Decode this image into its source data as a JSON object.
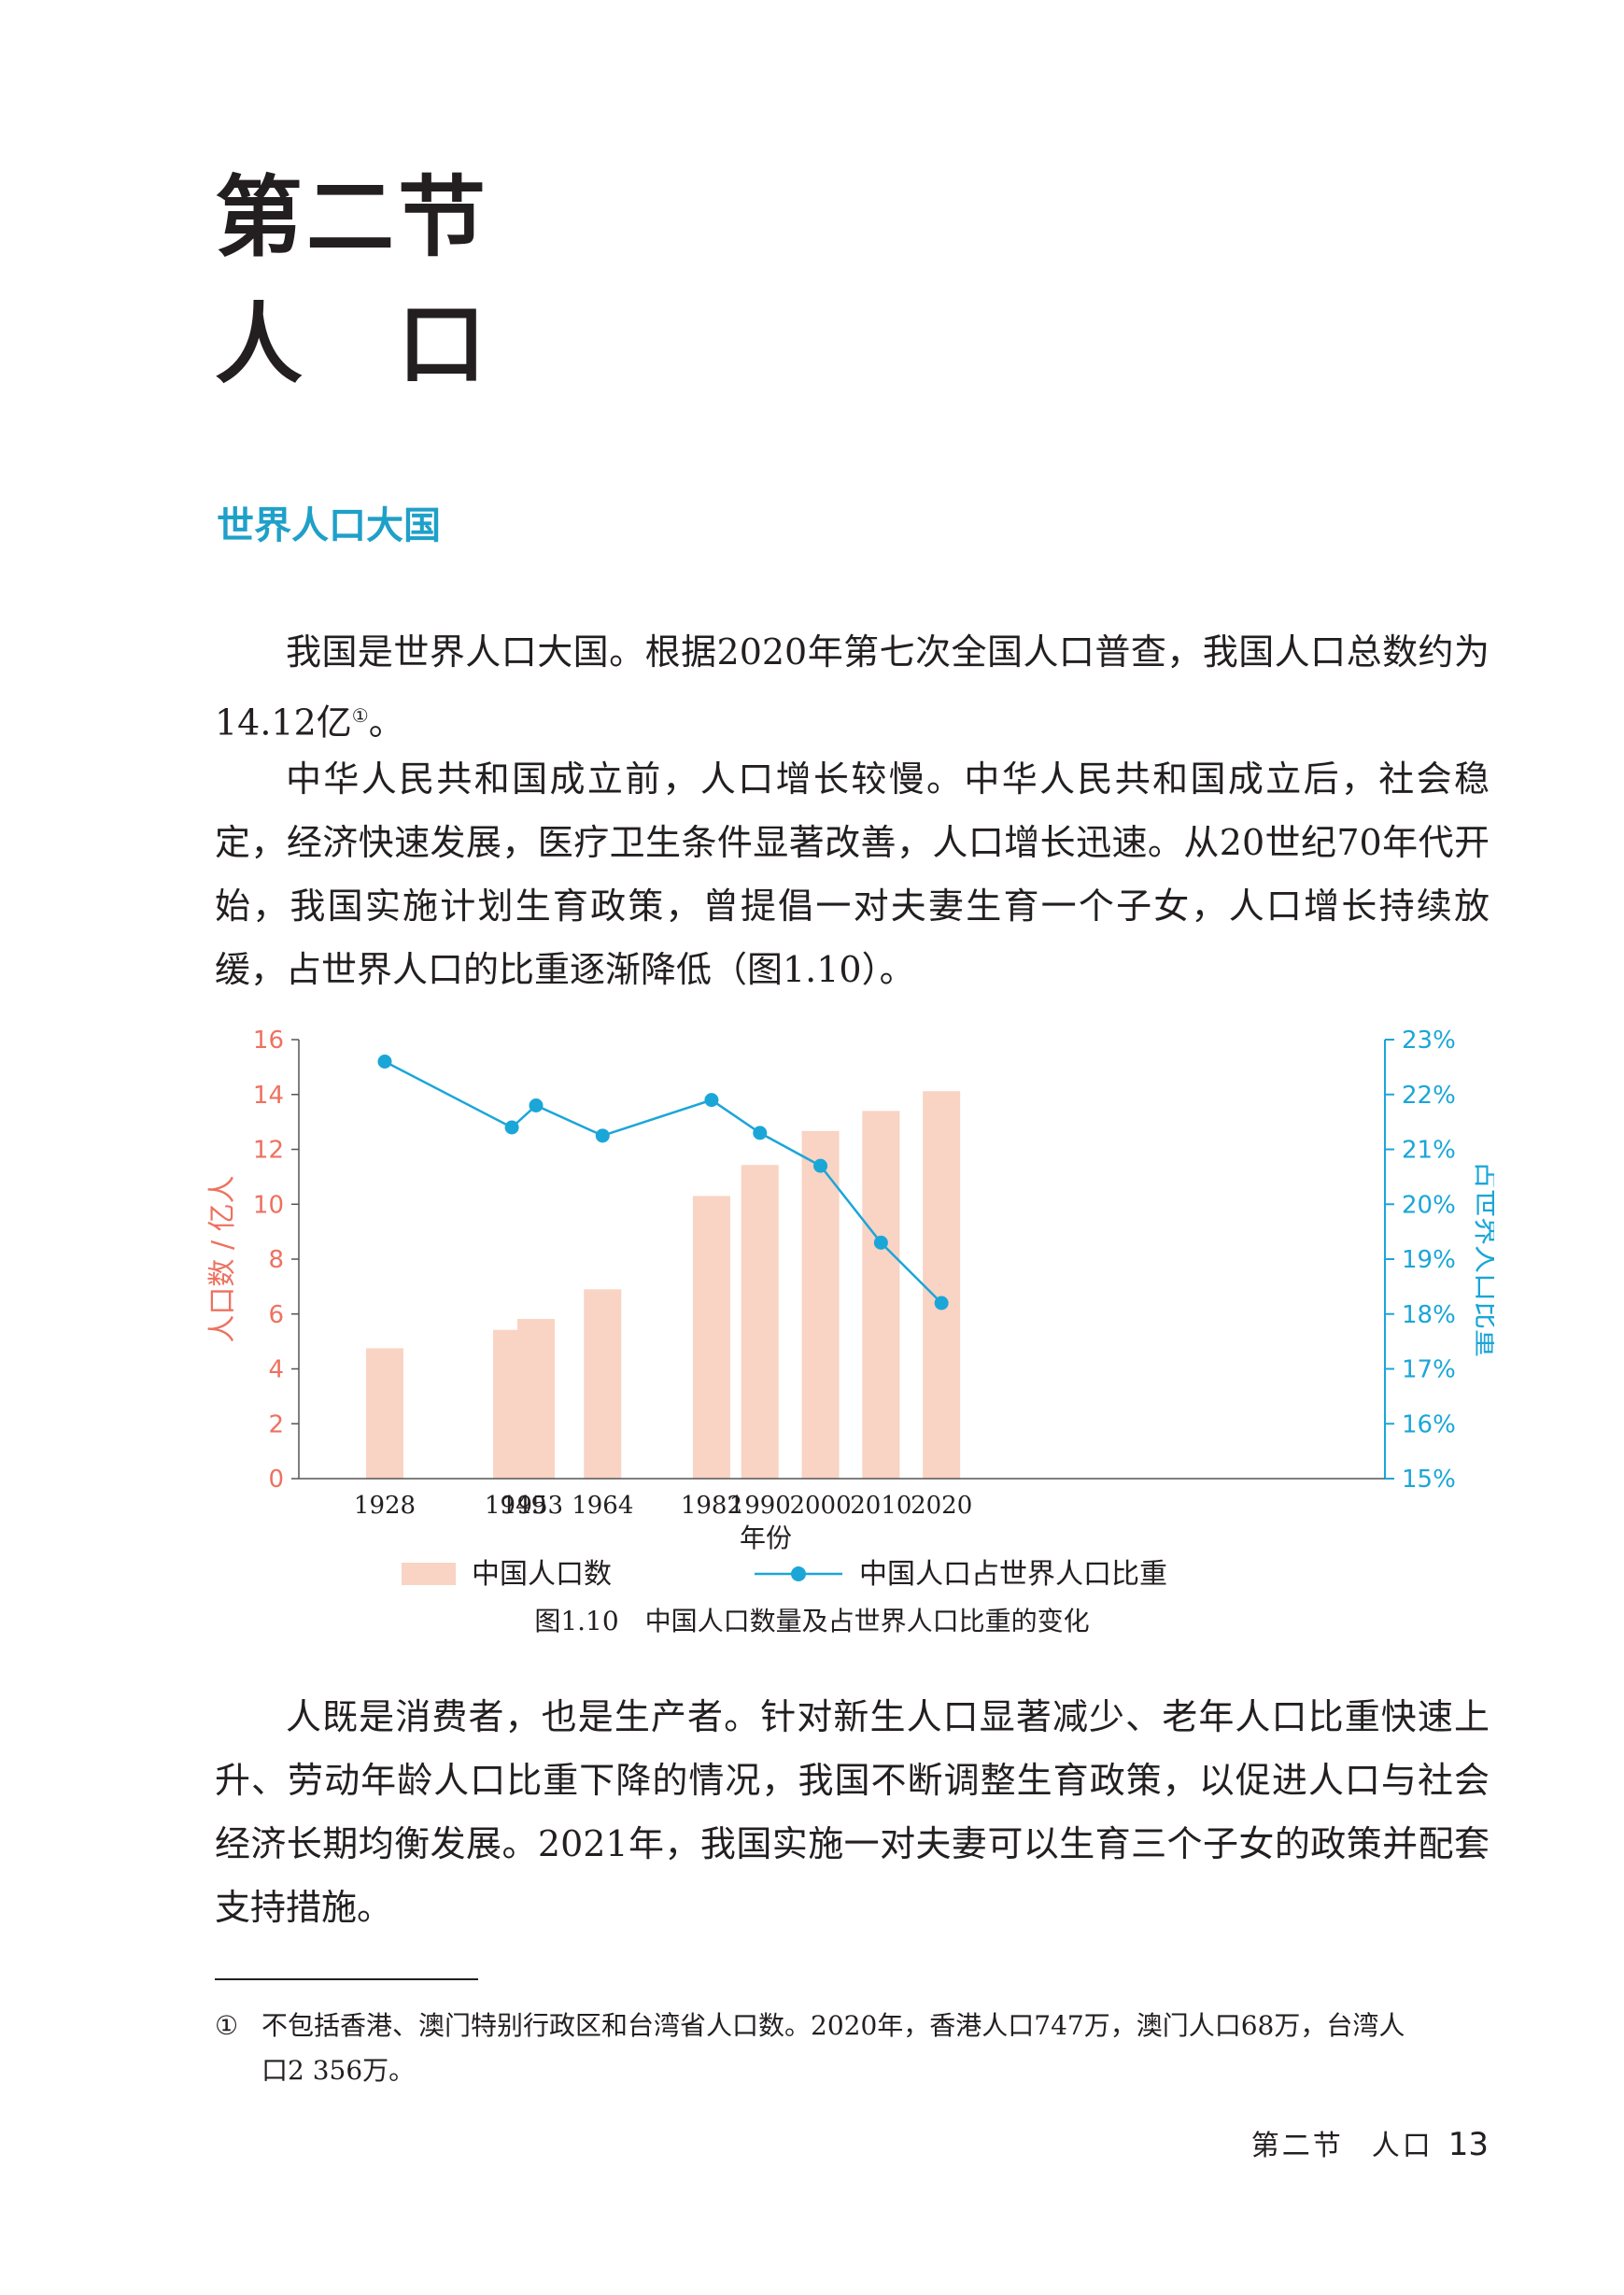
{
  "section": {
    "number": "第二节",
    "title": "人　口"
  },
  "subheading": "世界人口大国",
  "paragraphs": [
    {
      "text": "我国是世界人口大国。根据2020年第七次全国人口普查，我国人口总数约为14.12亿",
      "footnote_ref": "①",
      "tail": "。"
    },
    {
      "text": "中华人民共和国成立前，人口增长较慢。中华人民共和国成立后，社会稳定，经济快速发展，医疗卫生条件显著改善，人口增长迅速。从20世纪70年代开始，我国实施计划生育政策，曾提倡一对夫妻生育一个子女，人口增长持续放缓，占世界人口的比重逐渐降低（图1.10）。"
    },
    {
      "text": "人既是消费者，也是生产者。针对新生人口显著减少、老年人口比重快速上升、劳动年龄人口比重下降的情况，我国不断调整生育政策，以促进人口与社会经济长期均衡发展。2021年，我国实施一对夫妻可以生育三个子女的政策并配套支持措施。"
    }
  ],
  "chart_data": {
    "type": "bar",
    "categories": [
      "1928",
      "1949",
      "1953",
      "1964",
      "1982",
      "1990",
      "2000",
      "2010",
      "2020"
    ],
    "x": [
      1928,
      1949,
      1953,
      1964,
      1982,
      1990,
      2000,
      2010,
      2020
    ],
    "series": [
      {
        "name": "中国人口数",
        "type": "bar",
        "axis": "left",
        "color": "#f9d3c3",
        "values": [
          4.75,
          5.42,
          5.82,
          6.9,
          10.3,
          11.43,
          12.67,
          13.4,
          14.12
        ]
      },
      {
        "name": "中国人口占世界人口比重",
        "type": "line",
        "axis": "right",
        "color": "#1ba6d8",
        "values": [
          22.6,
          21.4,
          21.8,
          21.25,
          21.9,
          21.3,
          20.7,
          19.3,
          18.2
        ]
      }
    ],
    "xlabel": "年份",
    "ylabel_left": "人口数 / 亿人",
    "ylabel_right": "占世界人口比重",
    "ylim_left": [
      0,
      16
    ],
    "ylim_right": [
      15,
      23
    ],
    "yticks_left": [
      "0",
      "2",
      "4",
      "6",
      "8",
      "10",
      "12",
      "14",
      "16"
    ],
    "yticks_right": [
      "15%",
      "16%",
      "17%",
      "18%",
      "19%",
      "20%",
      "21%",
      "22%",
      "23%"
    ],
    "left_axis_color": "#ee7160",
    "right_axis_color": "#1ba6d8",
    "legend": [
      "中国人口数",
      "中国人口占世界人口比重"
    ],
    "legend_position": "bottom",
    "grid": false
  },
  "caption": "图1.10　中国人口数量及占世界人口比重的变化",
  "footnote": {
    "mark": "①",
    "line1": "不包括香港、澳门特别行政区和台湾省人口数。2020年，香港人口747万，澳门人口68万，台湾人",
    "line2": "口2 356万。"
  },
  "running_header": {
    "section": "第二节",
    "title": "人口",
    "page": "13"
  }
}
